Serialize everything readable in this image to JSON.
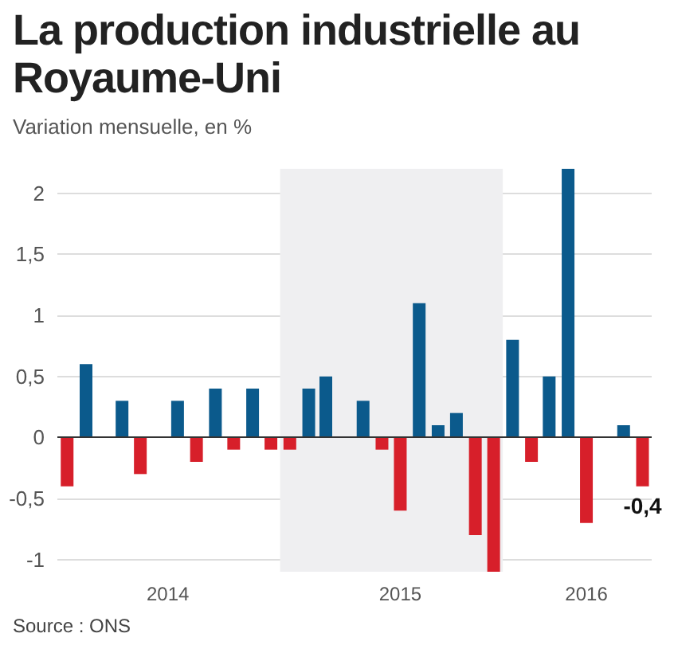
{
  "chart_data": {
    "type": "bar",
    "title": "La production industrielle au Royaume-Uni",
    "subtitle": "Variation mensuelle, en %",
    "x": [
      "2014-01",
      "2014-02",
      "2014-03",
      "2014-04",
      "2014-05",
      "2014-06",
      "2014-07",
      "2014-08",
      "2014-09",
      "2014-10",
      "2014-11",
      "2014-12",
      "2015-01",
      "2015-02",
      "2015-03",
      "2015-04",
      "2015-05",
      "2015-06",
      "2015-07",
      "2015-08",
      "2015-09",
      "2015-10",
      "2015-11",
      "2015-12",
      "2016-01",
      "2016-02",
      "2016-03",
      "2016-04",
      "2016-05",
      "2016-06",
      "2016-07",
      "2016-08"
    ],
    "values": [
      -0.4,
      0.6,
      0,
      0.3,
      -0.3,
      0,
      0.3,
      -0.2,
      0.4,
      -0.1,
      0.4,
      -0.1,
      -0.1,
      0.4,
      0.5,
      0,
      0.3,
      -0.1,
      -0.6,
      1.1,
      0.1,
      0.2,
      -0.8,
      -1.1,
      0.8,
      -0.2,
      0.5,
      2.2,
      -0.7,
      0,
      0.1,
      -0.4
    ],
    "colors": [
      "#d71f2a",
      "#0b5a8c",
      "#0b5a8c",
      "#0b5a8c",
      "#d71f2a",
      "#0b5a8c",
      "#0b5a8c",
      "#d71f2a",
      "#0b5a8c",
      "#d71f2a",
      "#0b5a8c",
      "#d71f2a",
      "#d71f2a",
      "#0b5a8c",
      "#0b5a8c",
      "#0b5a8c",
      "#0b5a8c",
      "#d71f2a",
      "#d71f2a",
      "#0b5a8c",
      "#0b5a8c",
      "#0b5a8c",
      "#d71f2a",
      "#d71f2a",
      "#0b5a8c",
      "#d71f2a",
      "#0b5a8c",
      "#0b5a8c",
      "#d71f2a",
      "#0b5a8c",
      "#0b5a8c",
      "#d71f2a"
    ],
    "value_labels": [
      null,
      null,
      null,
      null,
      null,
      null,
      null,
      null,
      null,
      null,
      null,
      null,
      null,
      null,
      null,
      null,
      null,
      null,
      null,
      null,
      null,
      null,
      null,
      null,
      null,
      null,
      null,
      null,
      null,
      null,
      null,
      "-0,4"
    ],
    "xlim": [
      "2013-12-16",
      "2016-08-16"
    ],
    "xticks": [
      {
        "value": "2014-06-15",
        "label": "2014"
      },
      {
        "value": "2015-07-01",
        "label": "2015"
      },
      {
        "value": "2016-05-01",
        "label": "2016"
      }
    ],
    "ylim": [
      -1.1,
      2.2
    ],
    "yticks": [
      {
        "value": -1,
        "label": "-1"
      },
      {
        "value": -0.5,
        "label": "-0,5"
      },
      0,
      {
        "value": 0.5,
        "label": "0,5"
      },
      1,
      {
        "value": 1.5,
        "label": "1,5"
      },
      2
    ],
    "bands": [
      {
        "axis": "x",
        "from": "2014-12-16",
        "to": "2015-12-16",
        "color": "#efeff1"
      }
    ],
    "grid": "y",
    "annotations": [
      "Source : ONS"
    ]
  }
}
